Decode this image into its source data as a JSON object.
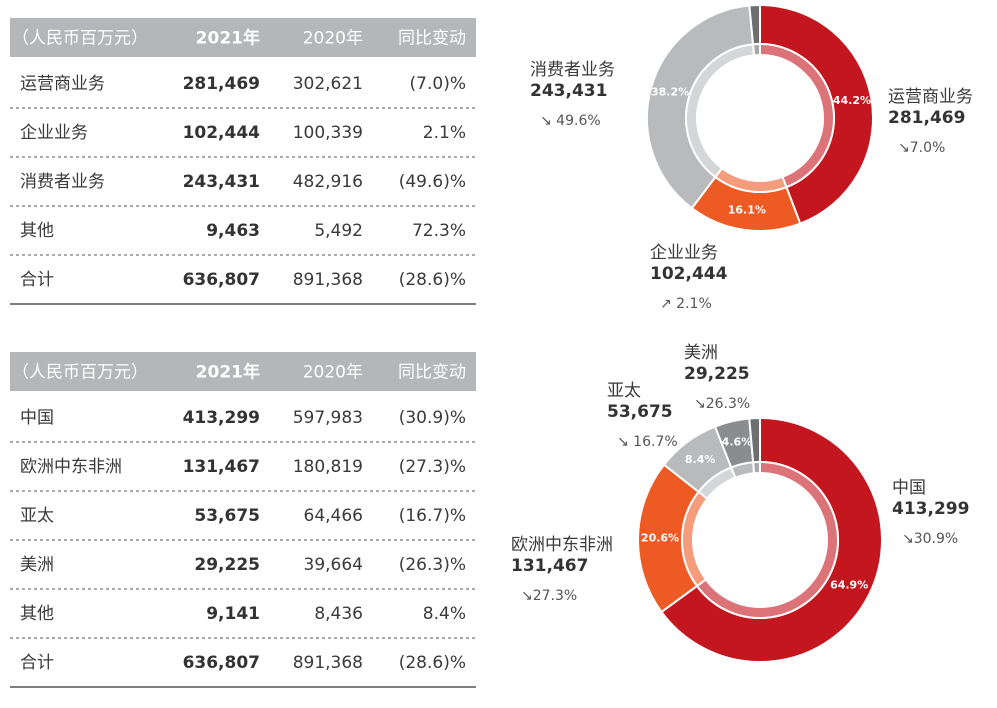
{
  "tables": [
    {
      "header": [
        "（人民币百万元）",
        "2021年",
        "2020年",
        "同比变动"
      ],
      "rows": [
        [
          "运营商业务",
          "281,469",
          "302,621",
          "(7.0)%"
        ],
        [
          "企业业务",
          "102,444",
          "100,339",
          "2.1%"
        ],
        [
          "消费者业务",
          "243,431",
          "482,916",
          "(49.6)%"
        ],
        [
          "其他",
          "9,463",
          "5,492",
          "72.3%"
        ],
        [
          "合计",
          "636,807",
          "891,368",
          "(28.6)%"
        ]
      ]
    },
    {
      "header": [
        "（人民币百万元）",
        "2021年",
        "2020年",
        "同比变动"
      ],
      "rows": [
        [
          "中国",
          "413,299",
          "597,983",
          "(30.9)%"
        ],
        [
          "欧洲中东非洲",
          "131,467",
          "180,819",
          "(27.3)%"
        ],
        [
          "亚太",
          "53,675",
          "64,466",
          "(16.7)%"
        ],
        [
          "美洲",
          "29,225",
          "39,664",
          "(26.3)%"
        ],
        [
          "其他",
          "9,141",
          "8,436",
          "8.4%"
        ],
        [
          "合计",
          "636,807",
          "891,368",
          "(28.6)%"
        ]
      ]
    }
  ],
  "chart_data": [
    {
      "type": "donut",
      "categories": [
        "运营商业务",
        "企业业务",
        "消费者业务",
        null
      ],
      "values": [
        44.2,
        16.1,
        38.2,
        1.5
      ],
      "value_labels": [
        "44.2%",
        "16.1%",
        "38.2%",
        null
      ],
      "colors": [
        "#c3161f",
        "#ee5a24",
        "#b9babc",
        "#6d6e70"
      ],
      "callouts": [
        {
          "name": "运营商业务",
          "amount": "281,469",
          "change": "↘7.0%"
        },
        {
          "name": "企业业务",
          "amount": "102,444",
          "change": "↗ 2.1%"
        },
        {
          "name": "消费者业务",
          "amount": "243,431",
          "change": "↘ 49.6%"
        }
      ]
    },
    {
      "type": "donut",
      "categories": [
        "中国",
        "欧洲中东非洲",
        "亚太",
        "美洲",
        null
      ],
      "values": [
        64.9,
        20.6,
        8.4,
        4.6,
        1.4
      ],
      "value_labels": [
        "64.9%",
        "20.6%",
        "8.4%",
        "4.6%",
        null
      ],
      "colors": [
        "#c3161f",
        "#ee5a24",
        "#b9babc",
        "#8b8c8e",
        "#6d6e70"
      ],
      "callouts": [
        {
          "name": "中国",
          "amount": "413,299",
          "change": "↘30.9%"
        },
        {
          "name": "欧洲中东非洲",
          "amount": "131,467",
          "change": "↘27.3%"
        },
        {
          "name": "亚太",
          "amount": "53,675",
          "change": "↘ 16.7%"
        },
        {
          "name": "美洲",
          "amount": "29,225",
          "change": "↘26.3%"
        }
      ]
    }
  ]
}
